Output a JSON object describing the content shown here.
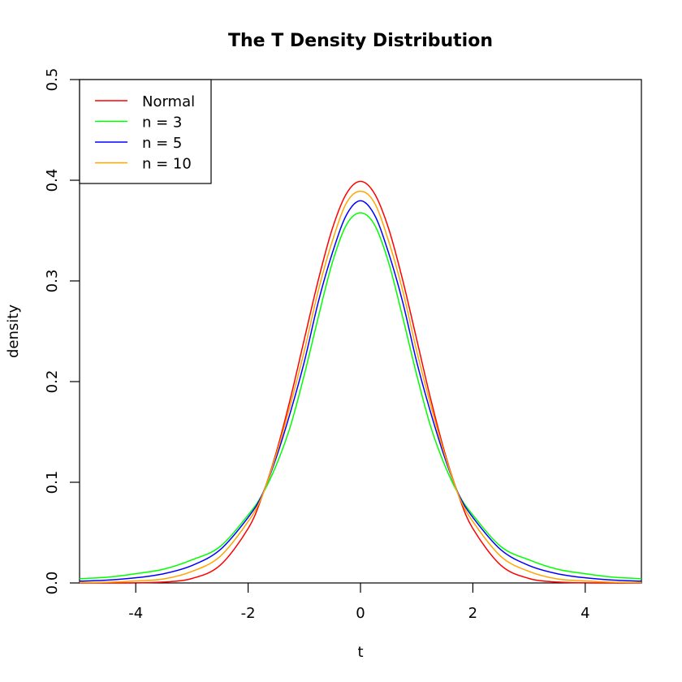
{
  "chart_data": {
    "type": "line",
    "title": "The T Density Distribution",
    "xlabel": "t",
    "ylabel": "density",
    "xlim": [
      -5,
      5
    ],
    "ylim": [
      0,
      0.5
    ],
    "x_ticks": [
      -4,
      -2,
      0,
      2,
      4
    ],
    "x_tick_labels": [
      "-4",
      "-2",
      "0",
      "2",
      "4"
    ],
    "y_ticks": [
      0,
      0.1,
      0.2,
      0.3,
      0.4,
      0.5
    ],
    "y_tick_labels": [
      "0.0",
      "0.1",
      "0.2",
      "0.3",
      "0.4",
      "0.5"
    ],
    "grid": false,
    "legend_position": "top-left",
    "x": [
      -5,
      -4.5,
      -4,
      -3.5,
      -3,
      -2.5,
      -2,
      -1.75,
      -1.5,
      -1.25,
      -1,
      -0.75,
      -0.5,
      -0.25,
      0,
      0.25,
      0.5,
      0.75,
      1,
      1.25,
      1.5,
      1.75,
      2,
      2.5,
      3,
      3.5,
      4,
      4.5,
      5
    ],
    "series": [
      {
        "name": "Normal",
        "color": "#ff0000",
        "values": [
          1.5e-06,
          1.6e-05,
          0.000134,
          0.000873,
          0.00443,
          0.0175,
          0.054,
          0.0863,
          0.1295,
          0.1826,
          0.242,
          0.3011,
          0.3521,
          0.3867,
          0.3989,
          0.3867,
          0.3521,
          0.3011,
          0.242,
          0.1826,
          0.1295,
          0.0863,
          0.054,
          0.0175,
          0.00443,
          0.000873,
          0.000134,
          1.6e-05,
          1.5e-06
        ]
      },
      {
        "name": "n = 3",
        "color": "#00ff00",
        "values": [
          0.0042,
          0.0057,
          0.0092,
          0.0137,
          0.0229,
          0.0361,
          0.0675,
          0.0876,
          0.1169,
          0.1552,
          0.2067,
          0.2642,
          0.3183,
          0.3557,
          0.3676,
          0.3557,
          0.3183,
          0.2642,
          0.2067,
          0.1552,
          0.1169,
          0.0876,
          0.0675,
          0.0361,
          0.0229,
          0.0137,
          0.0092,
          0.0057,
          0.0042
        ]
      },
      {
        "name": "n = 5",
        "color": "#0000ff",
        "values": [
          0.0018,
          0.0028,
          0.0051,
          0.0092,
          0.0173,
          0.0329,
          0.0651,
          0.0877,
          0.1245,
          0.1691,
          0.2197,
          0.2793,
          0.3279,
          0.3655,
          0.3796,
          0.3655,
          0.3279,
          0.2793,
          0.2197,
          0.1691,
          0.1245,
          0.0877,
          0.0651,
          0.0329,
          0.0173,
          0.0092,
          0.0051,
          0.0028,
          0.0018
        ]
      },
      {
        "name": "n = 10",
        "color": "#ffa500",
        "values": [
          0.0004,
          0.0007,
          0.002,
          0.004,
          0.0114,
          0.0263,
          0.061,
          0.0865,
          0.1274,
          0.1764,
          0.2304,
          0.2905,
          0.3397,
          0.3774,
          0.3891,
          0.3774,
          0.3397,
          0.2905,
          0.2304,
          0.1764,
          0.1274,
          0.0865,
          0.061,
          0.0263,
          0.0114,
          0.004,
          0.002,
          0.0007,
          0.0004
        ]
      }
    ]
  }
}
